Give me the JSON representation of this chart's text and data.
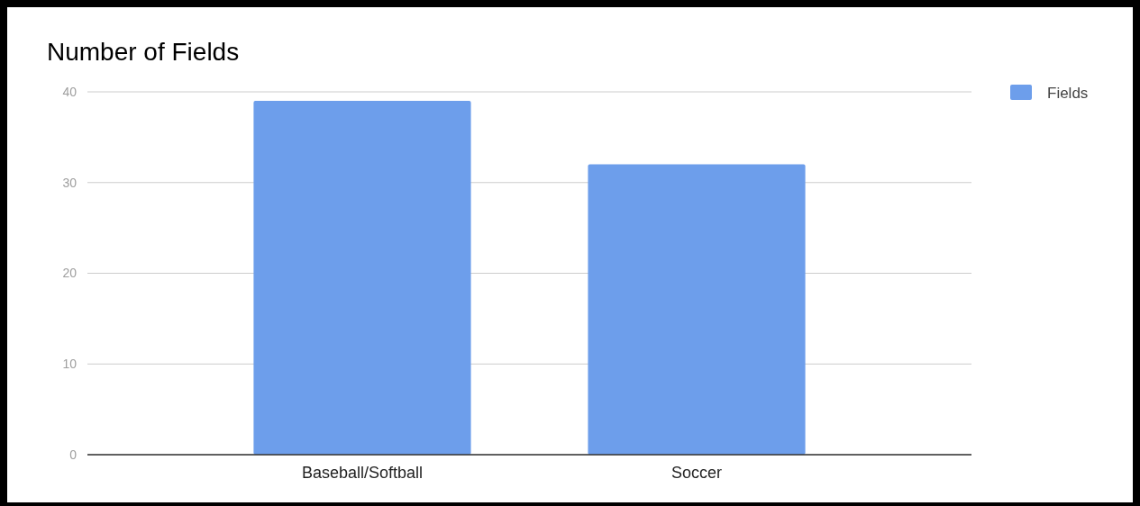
{
  "chart_data": {
    "type": "bar",
    "title": "Number of Fields",
    "categories": [
      "Baseball/Softball",
      "Soccer"
    ],
    "series": [
      {
        "name": "Fields",
        "color": "#6d9eeb",
        "values": [
          39,
          32
        ]
      }
    ],
    "ylim": [
      0,
      40
    ],
    "yticks": [
      0,
      10,
      20,
      30,
      40
    ],
    "grid": "y",
    "legend": "top right"
  }
}
